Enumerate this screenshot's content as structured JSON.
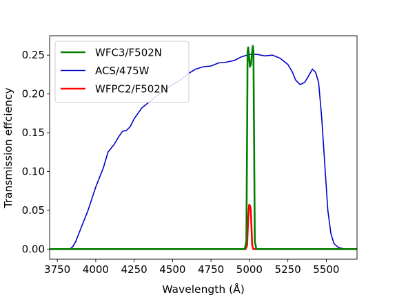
{
  "chart_data": {
    "type": "line",
    "title": "",
    "xlabel": "Wavelength (Å)",
    "ylabel": "Transmission effciency",
    "xlim": [
      3700,
      5700
    ],
    "ylim": [
      -0.013,
      0.275
    ],
    "x_ticks": [
      3750,
      4000,
      4250,
      4500,
      4750,
      5000,
      5250,
      5500
    ],
    "y_ticks": [
      0.0,
      0.05,
      0.1,
      0.15,
      0.2,
      0.25
    ],
    "y_tick_labels": [
      "0.00",
      "0.05",
      "0.10",
      "0.15",
      "0.20",
      "0.25"
    ],
    "grid": false,
    "legend_position": "top-left",
    "series": [
      {
        "name": "WFC3/F502N",
        "color": "#008000",
        "points": [
          [
            3700,
            0
          ],
          [
            4970,
            0
          ],
          [
            4980,
            0.01
          ],
          [
            4985,
            0.15
          ],
          [
            4988,
            0.255
          ],
          [
            4992,
            0.26
          ],
          [
            4997,
            0.25
          ],
          [
            5003,
            0.235
          ],
          [
            5010,
            0.238
          ],
          [
            5018,
            0.255
          ],
          [
            5022,
            0.262
          ],
          [
            5026,
            0.255
          ],
          [
            5030,
            0.15
          ],
          [
            5035,
            0.01
          ],
          [
            5045,
            0
          ],
          [
            5700,
            0
          ]
        ]
      },
      {
        "name": "ACS/475W",
        "color": "#0000cc",
        "points": [
          [
            3700,
            0
          ],
          [
            3830,
            0
          ],
          [
            3850,
            0.003
          ],
          [
            3870,
            0.01
          ],
          [
            3900,
            0.025
          ],
          [
            3950,
            0.05
          ],
          [
            4000,
            0.08
          ],
          [
            4050,
            0.105
          ],
          [
            4080,
            0.125
          ],
          [
            4120,
            0.135
          ],
          [
            4150,
            0.145
          ],
          [
            4175,
            0.152
          ],
          [
            4200,
            0.153
          ],
          [
            4225,
            0.158
          ],
          [
            4250,
            0.168
          ],
          [
            4300,
            0.182
          ],
          [
            4350,
            0.19
          ],
          [
            4400,
            0.198
          ],
          [
            4450,
            0.205
          ],
          [
            4500,
            0.212
          ],
          [
            4550,
            0.218
          ],
          [
            4600,
            0.226
          ],
          [
            4650,
            0.232
          ],
          [
            4700,
            0.235
          ],
          [
            4750,
            0.236
          ],
          [
            4800,
            0.24
          ],
          [
            4850,
            0.241
          ],
          [
            4900,
            0.243
          ],
          [
            4950,
            0.248
          ],
          [
            5000,
            0.251
          ],
          [
            5050,
            0.251
          ],
          [
            5100,
            0.249
          ],
          [
            5150,
            0.25
          ],
          [
            5200,
            0.246
          ],
          [
            5250,
            0.238
          ],
          [
            5280,
            0.228
          ],
          [
            5300,
            0.218
          ],
          [
            5330,
            0.212
          ],
          [
            5360,
            0.215
          ],
          [
            5390,
            0.225
          ],
          [
            5410,
            0.232
          ],
          [
            5430,
            0.228
          ],
          [
            5450,
            0.215
          ],
          [
            5470,
            0.17
          ],
          [
            5490,
            0.11
          ],
          [
            5510,
            0.05
          ],
          [
            5530,
            0.02
          ],
          [
            5550,
            0.007
          ],
          [
            5580,
            0.002
          ],
          [
            5620,
            0
          ],
          [
            5700,
            0
          ]
        ]
      },
      {
        "name": "WFPC2/F502N",
        "color": "#ff0000",
        "points": [
          [
            3700,
            0
          ],
          [
            4975,
            0
          ],
          [
            4985,
            0.005
          ],
          [
            4992,
            0.04
          ],
          [
            4998,
            0.057
          ],
          [
            5004,
            0.056
          ],
          [
            5009,
            0.05
          ],
          [
            5013,
            0.03
          ],
          [
            5018,
            0.005
          ],
          [
            5025,
            0
          ],
          [
            5700,
            0
          ]
        ]
      }
    ]
  }
}
